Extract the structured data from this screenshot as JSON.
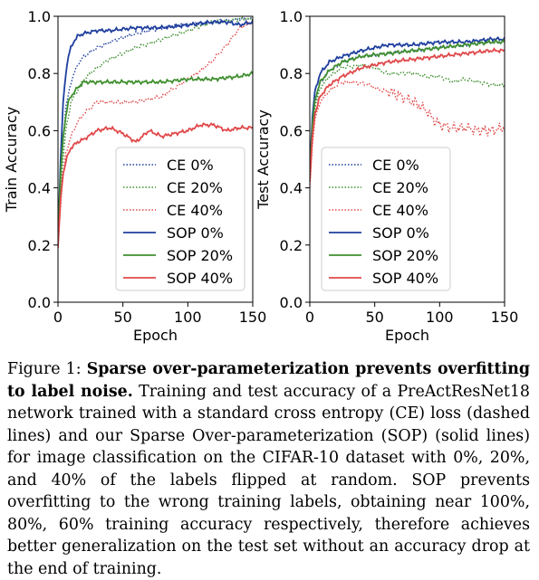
{
  "chart_data": [
    {
      "type": "line",
      "ylabel": "Train Accuracy",
      "xlabel": "Epoch",
      "xlim": [
        0,
        150
      ],
      "ylim": [
        0,
        1.0
      ],
      "xticks": [
        "0",
        "50",
        "100",
        "150"
      ],
      "yticks": [
        "0.0",
        "0.2",
        "0.4",
        "0.6",
        "0.8",
        "1.0"
      ],
      "grid": false,
      "legend_position": "lower-right",
      "series": [
        {
          "name": "CE 0%",
          "color": "#1f3f9e",
          "dash": "dotted",
          "x": [
            0,
            3,
            6,
            10,
            15,
            20,
            30,
            40,
            60,
            80,
            100,
            120,
            140,
            150
          ],
          "y": [
            0.2,
            0.5,
            0.68,
            0.77,
            0.83,
            0.86,
            0.89,
            0.91,
            0.94,
            0.96,
            0.97,
            0.98,
            0.99,
            0.99
          ]
        },
        {
          "name": "CE 20%",
          "color": "#3f8f2f",
          "dash": "dotted",
          "x": [
            0,
            3,
            6,
            10,
            15,
            20,
            30,
            40,
            60,
            80,
            100,
            120,
            140,
            150
          ],
          "y": [
            0.2,
            0.45,
            0.6,
            0.7,
            0.74,
            0.78,
            0.82,
            0.85,
            0.89,
            0.92,
            0.95,
            0.98,
            0.99,
            0.99
          ]
        },
        {
          "name": "CE 40%",
          "color": "#e0484a",
          "dash": "dotted",
          "x": [
            0,
            3,
            6,
            10,
            15,
            20,
            30,
            40,
            60,
            80,
            100,
            110,
            120,
            130,
            140,
            150
          ],
          "y": [
            0.2,
            0.4,
            0.52,
            0.58,
            0.63,
            0.66,
            0.7,
            0.7,
            0.7,
            0.72,
            0.78,
            0.81,
            0.85,
            0.9,
            0.96,
            0.98
          ]
        },
        {
          "name": "SOP 0%",
          "color": "#1f3f9e",
          "dash": "solid",
          "x": [
            0,
            2,
            4,
            6,
            8,
            10,
            12,
            15,
            20,
            30,
            40,
            60,
            80,
            100,
            120,
            130,
            140,
            150
          ],
          "y": [
            0.2,
            0.5,
            0.7,
            0.8,
            0.86,
            0.89,
            0.91,
            0.93,
            0.94,
            0.95,
            0.95,
            0.96,
            0.96,
            0.97,
            0.98,
            0.98,
            0.97,
            0.98
          ]
        },
        {
          "name": "SOP 20%",
          "color": "#3f8f2f",
          "dash": "solid",
          "x": [
            0,
            2,
            4,
            6,
            8,
            10,
            15,
            20,
            30,
            40,
            60,
            80,
            100,
            120,
            140,
            150
          ],
          "y": [
            0.2,
            0.45,
            0.58,
            0.65,
            0.7,
            0.72,
            0.75,
            0.77,
            0.77,
            0.77,
            0.77,
            0.77,
            0.78,
            0.78,
            0.79,
            0.8
          ]
        },
        {
          "name": "SOP 40%",
          "color": "#e0484a",
          "dash": "solid",
          "x": [
            0,
            2,
            4,
            6,
            8,
            10,
            15,
            20,
            30,
            40,
            50,
            60,
            70,
            80,
            90,
            100,
            110,
            120,
            130,
            140,
            150
          ],
          "y": [
            0.19,
            0.36,
            0.45,
            0.49,
            0.52,
            0.54,
            0.56,
            0.57,
            0.6,
            0.61,
            0.59,
            0.56,
            0.6,
            0.58,
            0.59,
            0.6,
            0.62,
            0.62,
            0.6,
            0.61,
            0.61
          ]
        }
      ]
    },
    {
      "type": "line",
      "ylabel": "Test Accuracy",
      "xlabel": "Epoch",
      "xlim": [
        0,
        150
      ],
      "ylim": [
        0,
        1.0
      ],
      "xticks": [
        "0",
        "50",
        "100",
        "150"
      ],
      "yticks": [
        "0.0",
        "0.2",
        "0.4",
        "0.6",
        "0.8",
        "1.0"
      ],
      "grid": false,
      "legend_position": "lower-center",
      "series": [
        {
          "name": "CE 0%",
          "color": "#1f3f9e",
          "dash": "dotted",
          "x": [
            0,
            2,
            4,
            8,
            15,
            25,
            40,
            60,
            80,
            100,
            120,
            140,
            150
          ],
          "y": [
            0.42,
            0.6,
            0.7,
            0.77,
            0.81,
            0.84,
            0.86,
            0.87,
            0.88,
            0.89,
            0.9,
            0.91,
            0.91
          ]
        },
        {
          "name": "CE 20%",
          "color": "#3f8f2f",
          "dash": "dotted",
          "x": [
            0,
            2,
            4,
            8,
            15,
            25,
            40,
            50,
            60,
            70,
            80,
            90,
            100,
            110,
            120,
            130,
            140,
            150
          ],
          "y": [
            0.42,
            0.58,
            0.68,
            0.75,
            0.79,
            0.82,
            0.83,
            0.82,
            0.8,
            0.8,
            0.8,
            0.79,
            0.79,
            0.77,
            0.78,
            0.77,
            0.76,
            0.76
          ]
        },
        {
          "name": "CE 40%",
          "color": "#e0484a",
          "dash": "dotted",
          "x": [
            0,
            2,
            4,
            8,
            15,
            25,
            35,
            45,
            55,
            60,
            70,
            80,
            90,
            95,
            100,
            110,
            120,
            130,
            140,
            150
          ],
          "y": [
            0.4,
            0.55,
            0.64,
            0.7,
            0.74,
            0.77,
            0.77,
            0.76,
            0.74,
            0.74,
            0.72,
            0.7,
            0.67,
            0.64,
            0.62,
            0.61,
            0.61,
            0.6,
            0.6,
            0.61
          ]
        },
        {
          "name": "SOP 0%",
          "color": "#1f3f9e",
          "dash": "solid",
          "x": [
            0,
            2,
            4,
            8,
            15,
            25,
            40,
            60,
            80,
            100,
            120,
            140,
            150
          ],
          "y": [
            0.45,
            0.65,
            0.74,
            0.8,
            0.84,
            0.86,
            0.88,
            0.9,
            0.9,
            0.91,
            0.91,
            0.92,
            0.92
          ]
        },
        {
          "name": "SOP 20%",
          "color": "#3f8f2f",
          "dash": "solid",
          "x": [
            0,
            2,
            4,
            8,
            15,
            25,
            40,
            60,
            80,
            100,
            120,
            140,
            150
          ],
          "y": [
            0.43,
            0.62,
            0.71,
            0.77,
            0.81,
            0.84,
            0.86,
            0.87,
            0.88,
            0.89,
            0.9,
            0.91,
            0.91
          ]
        },
        {
          "name": "SOP 40%",
          "color": "#e0484a",
          "dash": "solid",
          "x": [
            0,
            2,
            4,
            8,
            15,
            25,
            40,
            60,
            80,
            100,
            120,
            140,
            150
          ],
          "y": [
            0.42,
            0.58,
            0.66,
            0.72,
            0.76,
            0.79,
            0.82,
            0.84,
            0.85,
            0.86,
            0.87,
            0.88,
            0.88
          ]
        }
      ]
    }
  ],
  "caption": {
    "label": "Figure 1: ",
    "bold": "Sparse over-parameterization prevents overfitting to label noise.",
    "text": " Training and test accuracy of a PreActResNet18 network trained with a standard cross entropy (CE) loss (dashed lines) and our Sparse Over-parameterization (SOP) (solid lines) for image classification on the CIFAR-10 dataset with 0%, 20%, and 40% of the labels flipped at random. SOP prevents overfitting to the wrong training labels, obtaining near 100%, 80%, 60% training accuracy respectively, therefore achieves better generalization on the test set without an accuracy drop at the end of training."
  }
}
